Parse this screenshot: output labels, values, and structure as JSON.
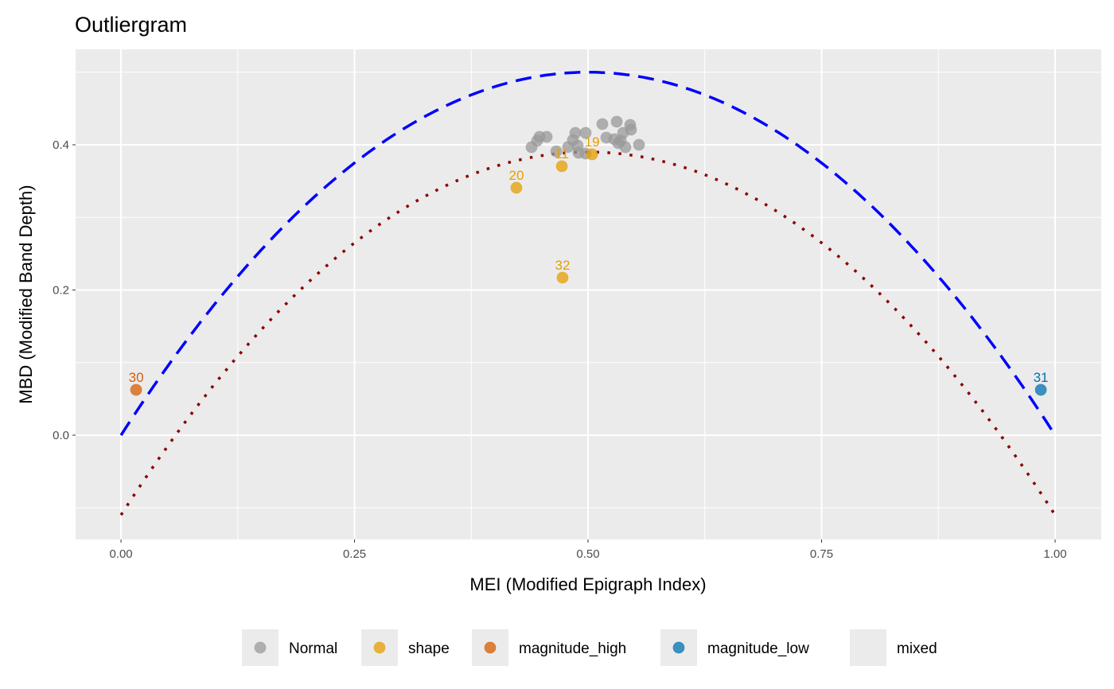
{
  "chart_data": {
    "type": "scatter",
    "title": "Outliergram",
    "xlabel": "MEI (Modified Epigraph Index)",
    "ylabel": "MBD (Modified Band Depth)",
    "xlim": [
      -0.0486,
      1.0494
    ],
    "ylim": [
      -0.1436,
      0.5315
    ],
    "xticks": [
      0,
      0.25,
      0.5,
      0.75,
      1
    ],
    "xtick_labels": [
      "0.00",
      "0.25",
      "0.50",
      "0.75",
      "1.00"
    ],
    "yticks": [
      0,
      0.2,
      0.4
    ],
    "ytick_labels": [
      "0.0",
      "0.2",
      "0.4"
    ],
    "grid": true,
    "legend_position": "bottom",
    "colors": {
      "Normal": "#999999",
      "shape": "#E69F00",
      "magnitude_high": "#D55E00",
      "magnitude_low": "#0072B2",
      "upper_curve": "#0000FF",
      "lower_curve": "#8B0000"
    },
    "legend": [
      "Normal",
      "shape",
      "magnitude_high",
      "magnitude_low",
      "mixed"
    ],
    "curves": [
      {
        "name": "upper parabola",
        "style": "dashed",
        "a0": 0,
        "a1": 2,
        "a2": -2
      },
      {
        "name": "lower parabola",
        "style": "dotted",
        "a0": -0.11,
        "a1": 2,
        "a2": -2
      }
    ],
    "points": [
      {
        "x": 0.4395,
        "y": 0.3967,
        "type": "Normal"
      },
      {
        "x": 0.4455,
        "y": 0.4055,
        "type": "Normal"
      },
      {
        "x": 0.448,
        "y": 0.411,
        "type": "Normal"
      },
      {
        "x": 0.4557,
        "y": 0.411,
        "type": "Normal"
      },
      {
        "x": 0.466,
        "y": 0.391,
        "type": "Normal"
      },
      {
        "x": 0.4787,
        "y": 0.397,
        "type": "Normal"
      },
      {
        "x": 0.4838,
        "y": 0.4066,
        "type": "Normal"
      },
      {
        "x": 0.4864,
        "y": 0.4164,
        "type": "Normal"
      },
      {
        "x": 0.4974,
        "y": 0.4164,
        "type": "Normal"
      },
      {
        "x": 0.4889,
        "y": 0.3989,
        "type": "Normal"
      },
      {
        "x": 0.4898,
        "y": 0.389,
        "type": "Normal"
      },
      {
        "x": 0.4974,
        "y": 0.3879,
        "type": "Normal"
      },
      {
        "x": 0.5153,
        "y": 0.4285,
        "type": "Normal"
      },
      {
        "x": 0.5307,
        "y": 0.4318,
        "type": "Normal"
      },
      {
        "x": 0.5451,
        "y": 0.4274,
        "type": "Normal"
      },
      {
        "x": 0.546,
        "y": 0.4208,
        "type": "Normal"
      },
      {
        "x": 0.5375,
        "y": 0.4164,
        "type": "Normal"
      },
      {
        "x": 0.5196,
        "y": 0.4099,
        "type": "Normal"
      },
      {
        "x": 0.5281,
        "y": 0.4077,
        "type": "Normal"
      },
      {
        "x": 0.5324,
        "y": 0.4022,
        "type": "Normal"
      },
      {
        "x": 0.54,
        "y": 0.3967,
        "type": "Normal"
      },
      {
        "x": 0.5545,
        "y": 0.4,
        "type": "Normal"
      },
      {
        "x": 0.535,
        "y": 0.4055,
        "type": "Normal"
      },
      {
        "x": 0.4233,
        "y": 0.3408,
        "type": "shape",
        "label": "20"
      },
      {
        "x": 0.4719,
        "y": 0.3704,
        "type": "shape",
        "label": "11"
      },
      {
        "x": 0.5043,
        "y": 0.3868,
        "type": "shape",
        "label": "19"
      },
      {
        "x": 0.4727,
        "y": 0.217,
        "type": "shape",
        "label": "32"
      },
      {
        "x": 0.0162,
        "y": 0.0625,
        "type": "magnitude_high",
        "label": "30"
      },
      {
        "x": 0.9847,
        "y": 0.0625,
        "type": "magnitude_low",
        "label": "31"
      }
    ]
  }
}
